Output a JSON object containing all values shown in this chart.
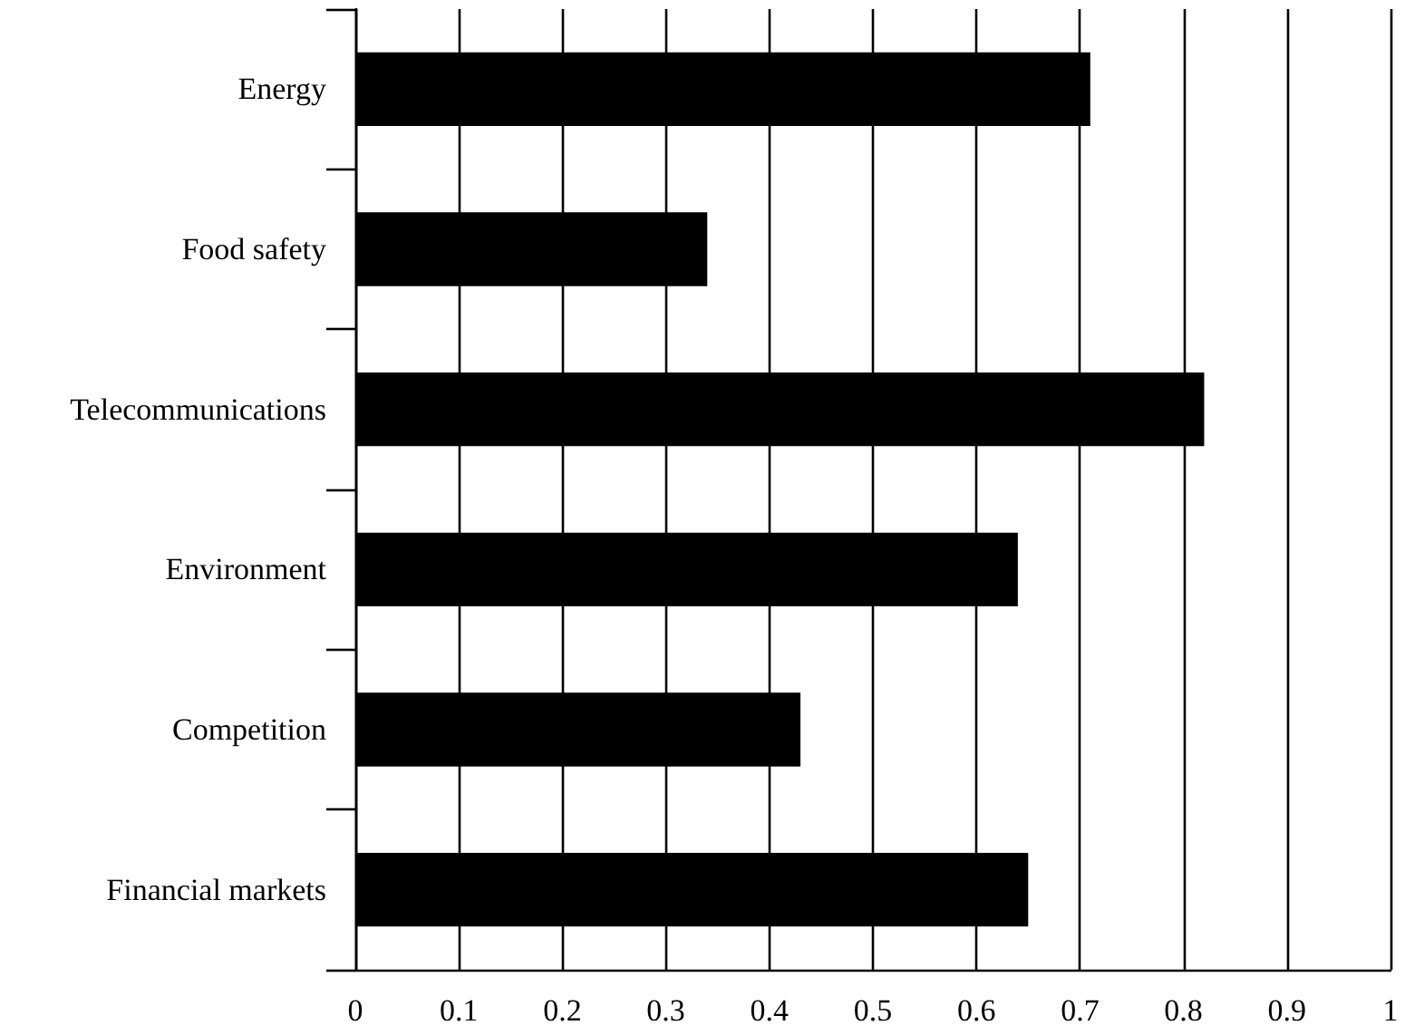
{
  "chart_data": {
    "type": "bar",
    "orientation": "horizontal",
    "categories": [
      "Energy",
      "Food safety",
      "Telecommunications",
      "Environment",
      "Competition",
      "Financial markets"
    ],
    "values": [
      0.71,
      0.34,
      0.82,
      0.64,
      0.43,
      0.65
    ],
    "color": "#000000",
    "xlim": [
      0,
      1
    ],
    "xticks": [
      0,
      0.1,
      0.2,
      0.3,
      0.4,
      0.5,
      0.6,
      0.7,
      0.8,
      0.9,
      1
    ],
    "grid": "x"
  }
}
